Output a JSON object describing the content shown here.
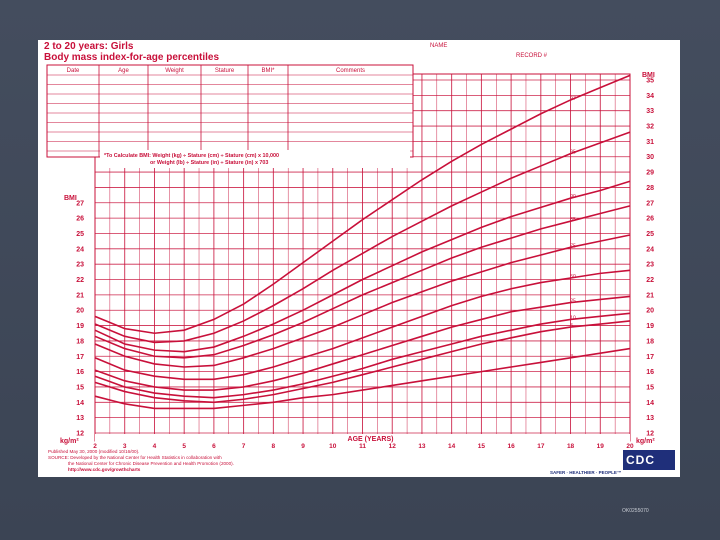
{
  "form": {
    "name_label": "NAME",
    "record_label": "RECORD #"
  },
  "record_table": {
    "headers": [
      "Date",
      "Age",
      "Weight",
      "Stature",
      "BMI*",
      "Comments"
    ]
  },
  "chart_data": {
    "type": "line",
    "title": "2 to 20 years: Girls",
    "subtitle": "Body mass index-for-age percentiles",
    "xlabel": "AGE (YEARS)",
    "ylabel": "BMI",
    "unit_label": "kg/m²",
    "xlim": [
      2,
      20
    ],
    "ylim": [
      12,
      35
    ],
    "x_ticks": [
      2,
      3,
      4,
      5,
      6,
      7,
      8,
      9,
      10,
      11,
      12,
      13,
      14,
      15,
      16,
      17,
      18,
      19,
      20
    ],
    "left_ticks": [
      12,
      13,
      14,
      15,
      16,
      17,
      18,
      19,
      20,
      21,
      22,
      23,
      24,
      25,
      26,
      27
    ],
    "right_ticks": [
      12,
      13,
      14,
      15,
      16,
      17,
      18,
      19,
      20,
      21,
      22,
      23,
      24,
      25,
      26,
      27,
      28,
      29,
      30,
      31,
      32,
      33,
      34,
      35
    ],
    "formula_line1": "*To Calculate BMI: Weight (kg) ÷ Stature (cm) ÷ Stature (cm) x 10,000",
    "formula_line2": "or Weight (lb) ÷ Stature (in) ÷ Stature (in) x 703",
    "grid": true,
    "series": [
      {
        "name": "97",
        "x": [
          2,
          3,
          4,
          5,
          6,
          7,
          8,
          9,
          10,
          11,
          12,
          13,
          14,
          15,
          16,
          17,
          18,
          19,
          20
        ],
        "values": [
          19.6,
          18.8,
          18.5,
          18.7,
          19.4,
          20.4,
          21.7,
          23.1,
          24.5,
          25.9,
          27.2,
          28.5,
          29.7,
          30.8,
          31.8,
          32.8,
          33.7,
          34.5,
          35.3
        ]
      },
      {
        "name": "95",
        "x": [
          2,
          3,
          4,
          5,
          6,
          7,
          8,
          9,
          10,
          11,
          12,
          13,
          14,
          15,
          16,
          17,
          18,
          19,
          20
        ],
        "values": [
          19.1,
          18.3,
          17.9,
          18.0,
          18.5,
          19.3,
          20.3,
          21.4,
          22.6,
          23.7,
          24.8,
          25.8,
          26.8,
          27.7,
          28.6,
          29.4,
          30.2,
          30.9,
          31.6
        ]
      },
      {
        "name": "90",
        "x": [
          2,
          3,
          4,
          5,
          6,
          7,
          8,
          9,
          10,
          11,
          12,
          13,
          14,
          15,
          16,
          17,
          18,
          19,
          20
        ],
        "values": [
          18.7,
          17.8,
          17.4,
          17.3,
          17.6,
          18.3,
          19.1,
          20.0,
          21.0,
          22.0,
          22.9,
          23.8,
          24.6,
          25.4,
          26.1,
          26.7,
          27.3,
          27.8,
          28.4
        ]
      },
      {
        "name": "85",
        "x": [
          2,
          3,
          4,
          5,
          6,
          7,
          8,
          9,
          10,
          11,
          12,
          13,
          14,
          15,
          16,
          17,
          18,
          19,
          20
        ],
        "values": [
          18.3,
          17.5,
          17.0,
          16.9,
          17.1,
          17.7,
          18.4,
          19.2,
          20.1,
          21.0,
          21.8,
          22.6,
          23.4,
          24.1,
          24.7,
          25.3,
          25.8,
          26.3,
          26.8
        ]
      },
      {
        "name": "75",
        "x": [
          2,
          3,
          4,
          5,
          6,
          7,
          8,
          9,
          10,
          11,
          12,
          13,
          14,
          15,
          16,
          17,
          18,
          19,
          20
        ],
        "values": [
          17.8,
          17.0,
          16.5,
          16.3,
          16.4,
          16.9,
          17.5,
          18.2,
          18.9,
          19.7,
          20.5,
          21.2,
          21.9,
          22.5,
          23.1,
          23.6,
          24.1,
          24.5,
          24.9
        ]
      },
      {
        "name": "50",
        "x": [
          2,
          3,
          4,
          5,
          6,
          7,
          8,
          9,
          10,
          11,
          12,
          13,
          14,
          15,
          16,
          17,
          18,
          19,
          20
        ],
        "values": [
          16.9,
          16.1,
          15.7,
          15.5,
          15.5,
          15.8,
          16.3,
          16.9,
          17.5,
          18.2,
          18.9,
          19.6,
          20.3,
          20.9,
          21.4,
          21.8,
          22.1,
          22.4,
          22.6
        ]
      },
      {
        "name": "25",
        "x": [
          2,
          3,
          4,
          5,
          6,
          7,
          8,
          9,
          10,
          11,
          12,
          13,
          14,
          15,
          16,
          17,
          18,
          19,
          20
        ],
        "values": [
          16.1,
          15.4,
          15.0,
          14.8,
          14.8,
          15.0,
          15.4,
          15.9,
          16.5,
          17.1,
          17.7,
          18.3,
          18.9,
          19.4,
          19.9,
          20.2,
          20.5,
          20.7,
          20.9
        ]
      },
      {
        "name": "10",
        "x": [
          2,
          3,
          4,
          5,
          6,
          7,
          8,
          9,
          10,
          11,
          12,
          13,
          14,
          15,
          16,
          17,
          18,
          19,
          20
        ],
        "values": [
          15.7,
          15.0,
          14.6,
          14.4,
          14.3,
          14.5,
          14.8,
          15.2,
          15.7,
          16.2,
          16.8,
          17.3,
          17.8,
          18.3,
          18.7,
          19.1,
          19.4,
          19.6,
          19.8
        ]
      },
      {
        "name": "5",
        "x": [
          2,
          3,
          4,
          5,
          6,
          7,
          8,
          9,
          10,
          11,
          12,
          13,
          14,
          15,
          16,
          17,
          18,
          19,
          20
        ],
        "values": [
          15.3,
          14.7,
          14.3,
          14.1,
          14.0,
          14.2,
          14.5,
          14.9,
          15.3,
          15.8,
          16.3,
          16.8,
          17.3,
          17.8,
          18.2,
          18.6,
          18.9,
          19.1,
          19.3
        ]
      },
      {
        "name": "3",
        "x": [
          2,
          3,
          4,
          5,
          6,
          7,
          8,
          9,
          10,
          11,
          12,
          13,
          14,
          15,
          16,
          17,
          18,
          19,
          20
        ],
        "values": [
          14.4,
          13.9,
          13.6,
          13.6,
          13.6,
          13.8,
          14.0,
          14.3,
          14.5,
          14.8,
          15.1,
          15.4,
          15.7,
          16.0,
          16.3,
          16.6,
          16.9,
          17.2,
          17.5
        ]
      }
    ]
  },
  "footer": {
    "published": "Published May 30, 2000 (modified 10/16/00).",
    "source1": "SOURCE: Developed by the National Center for Health Statistics in collaboration with",
    "source2": "the National Center for Chronic Disease Prevention and Health Promotion (2000).",
    "url": "http://www.cdc.gov/growthcharts",
    "logo_text": "CDC",
    "tagline": "SAFER · HEALTHIER · PEOPLE™"
  },
  "slide": {
    "code": "OK0255070"
  },
  "colors": {
    "ink": "#c8103a",
    "background": "#40495a",
    "logo": "#1f2f7a"
  }
}
